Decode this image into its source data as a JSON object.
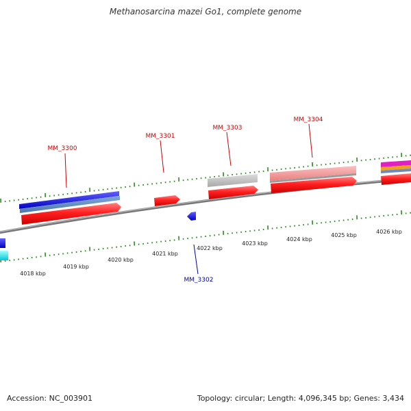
{
  "title": "Methanosarcina mazei Go1, complete genome",
  "footer": {
    "accession": "Accession: NC_003901",
    "summary": "Topology: circular; Length: 4,096,345 bp; Genes: 3,434"
  },
  "colors": {
    "backbone": "#888888",
    "ticks": "#2a8c1e",
    "forward_genes": "#ee1111",
    "reverse_genes": "#1a1aee",
    "gene_label_forward": "#cc0000",
    "gene_label_reverse": "#0000aa"
  },
  "scale_labels": [
    "4018 kbp",
    "4019 kbp",
    "4020 kbp",
    "4021 kbp",
    "4022 kbp",
    "4023 kbp",
    "4024 kbp",
    "4025 kbp",
    "4026 kbp"
  ],
  "gene_labels": [
    {
      "text": "MM_3300",
      "strand": "forward"
    },
    {
      "text": "MM_3301",
      "strand": "forward"
    },
    {
      "text": "MM_3302",
      "strand": "reverse"
    },
    {
      "text": "MM_3303",
      "strand": "forward"
    },
    {
      "text": "MM_3304",
      "strand": "forward"
    }
  ]
}
